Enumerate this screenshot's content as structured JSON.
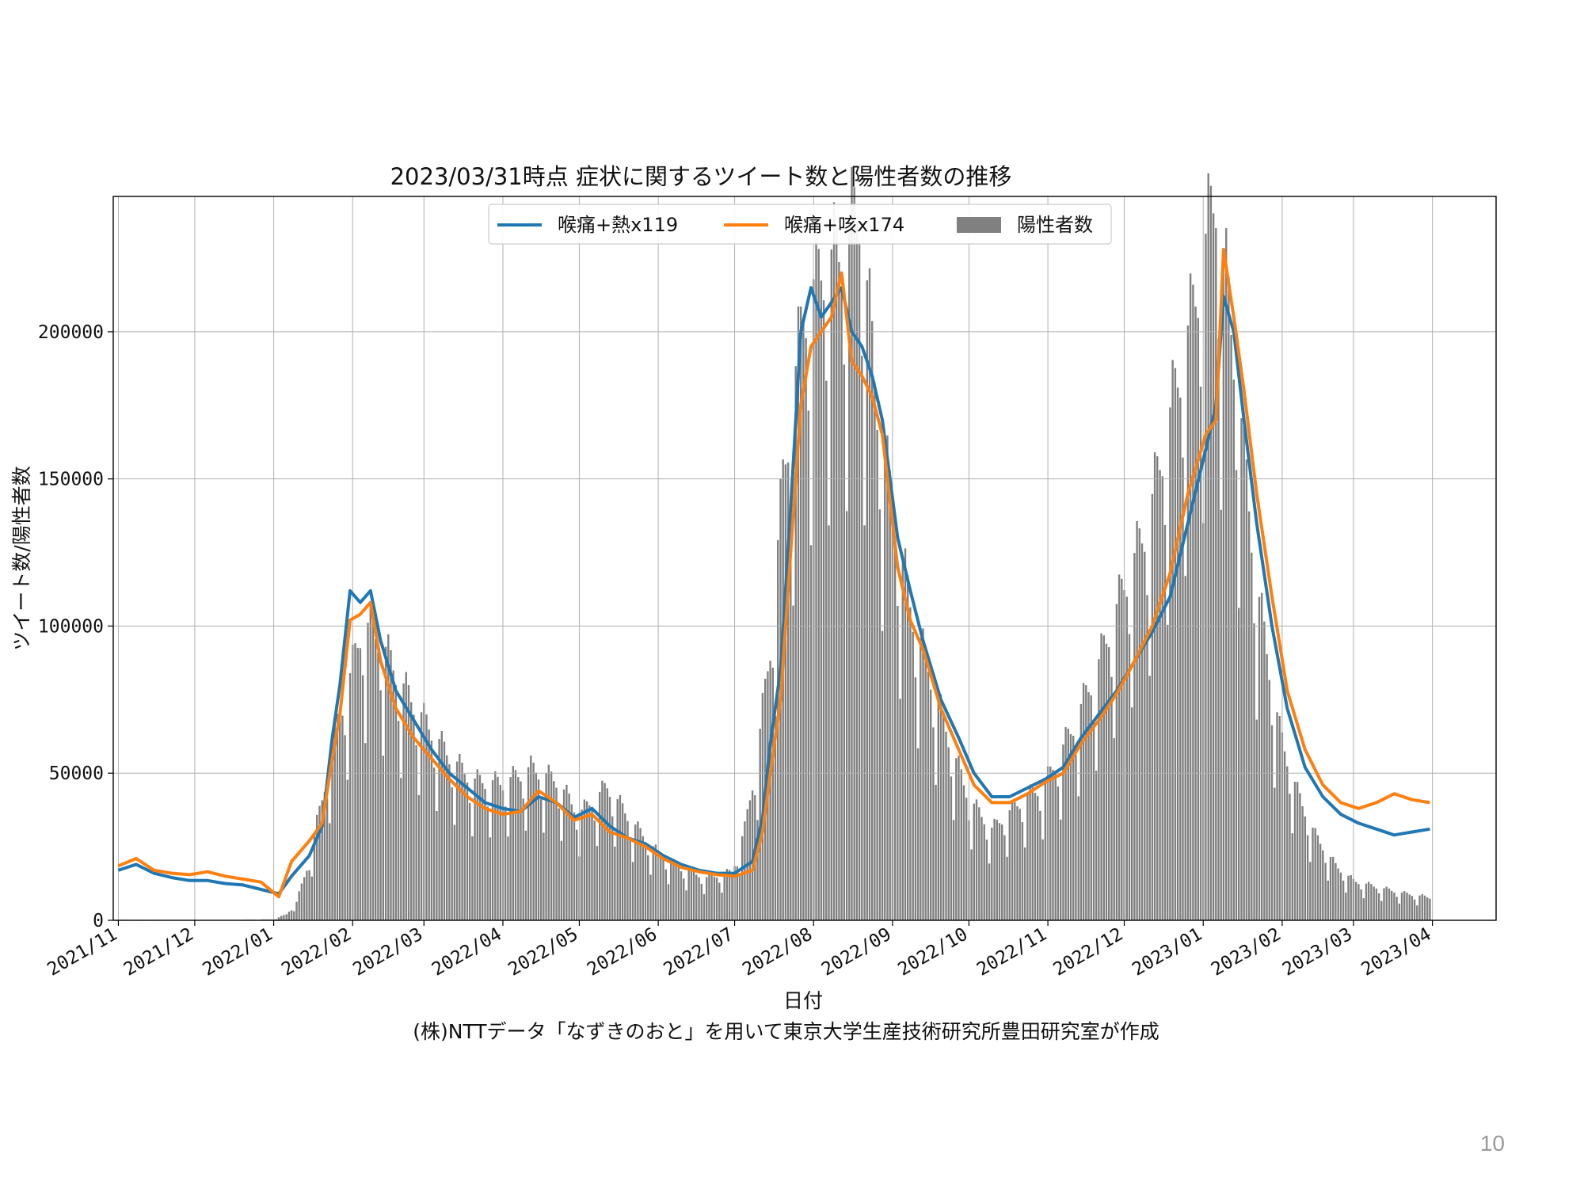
{
  "page_number": "10",
  "credit": "(株)NTTデータ「なずきのおと」を用いて東京大学生産技術研究所豊田研究室が作成",
  "chart_data": {
    "type": "line",
    "title": "2023/03/31時点 症状に関するツイート数と陽性者数の推移",
    "xlabel": "日付",
    "ylabel": "ツイート数/陽性者数",
    "x_ticks": [
      "2021/11",
      "2021/12",
      "2022/01",
      "2022/02",
      "2022/03",
      "2022/04",
      "2022/05",
      "2022/06",
      "2022/07",
      "2022/08",
      "2022/09",
      "2022/10",
      "2022/11",
      "2022/12",
      "2023/01",
      "2023/02",
      "2023/03",
      "2023/04"
    ],
    "x_range": [
      "2021-10-30",
      "2023-04-26"
    ],
    "y_ticks": [
      0,
      50000,
      100000,
      150000,
      200000
    ],
    "ylim": [
      0,
      246000
    ],
    "grid": true,
    "legend_position": "top-center",
    "colors": {
      "series1": "#1f77b4",
      "series2": "#ff7f0e",
      "bars": "#808080"
    },
    "series": [
      {
        "name": "喉痛+熱x119",
        "kind": "line",
        "points": [
          [
            "2021-11-01",
            17000
          ],
          [
            "2021-11-08",
            19000
          ],
          [
            "2021-11-15",
            16000
          ],
          [
            "2021-11-22",
            14500
          ],
          [
            "2021-11-29",
            13500
          ],
          [
            "2021-12-06",
            13500
          ],
          [
            "2021-12-13",
            12500
          ],
          [
            "2021-12-20",
            12000
          ],
          [
            "2021-12-27",
            10500
          ],
          [
            "2022-01-03",
            9000
          ],
          [
            "2022-01-08",
            15000
          ],
          [
            "2022-01-15",
            22000
          ],
          [
            "2022-01-20",
            32000
          ],
          [
            "2022-01-24",
            62000
          ],
          [
            "2022-01-27",
            80000
          ],
          [
            "2022-01-31",
            112000
          ],
          [
            "2022-02-04",
            108000
          ],
          [
            "2022-02-08",
            112000
          ],
          [
            "2022-02-12",
            95000
          ],
          [
            "2022-02-18",
            78000
          ],
          [
            "2022-02-25",
            68000
          ],
          [
            "2022-03-04",
            58000
          ],
          [
            "2022-03-11",
            50000
          ],
          [
            "2022-03-18",
            45000
          ],
          [
            "2022-03-25",
            40000
          ],
          [
            "2022-04-01",
            38000
          ],
          [
            "2022-04-08",
            37000
          ],
          [
            "2022-04-15",
            42000
          ],
          [
            "2022-04-22",
            40000
          ],
          [
            "2022-04-29",
            35000
          ],
          [
            "2022-05-06",
            38000
          ],
          [
            "2022-05-13",
            32000
          ],
          [
            "2022-05-20",
            28000
          ],
          [
            "2022-05-27",
            26000
          ],
          [
            "2022-06-03",
            22000
          ],
          [
            "2022-06-10",
            19000
          ],
          [
            "2022-06-17",
            17000
          ],
          [
            "2022-06-24",
            16000
          ],
          [
            "2022-07-01",
            16000
          ],
          [
            "2022-07-08",
            20000
          ],
          [
            "2022-07-12",
            35000
          ],
          [
            "2022-07-15",
            60000
          ],
          [
            "2022-07-19",
            85000
          ],
          [
            "2022-07-23",
            140000
          ],
          [
            "2022-07-27",
            200000
          ],
          [
            "2022-07-31",
            215000
          ],
          [
            "2022-08-04",
            205000
          ],
          [
            "2022-08-08",
            210000
          ],
          [
            "2022-08-12",
            215000
          ],
          [
            "2022-08-16",
            200000
          ],
          [
            "2022-08-20",
            195000
          ],
          [
            "2022-08-24",
            185000
          ],
          [
            "2022-08-28",
            170000
          ],
          [
            "2022-09-03",
            130000
          ],
          [
            "2022-09-08",
            112000
          ],
          [
            "2022-09-13",
            95000
          ],
          [
            "2022-09-20",
            75000
          ],
          [
            "2022-09-27",
            62000
          ],
          [
            "2022-10-03",
            50000
          ],
          [
            "2022-10-10",
            42000
          ],
          [
            "2022-10-17",
            42000
          ],
          [
            "2022-10-24",
            45000
          ],
          [
            "2022-10-31",
            48000
          ],
          [
            "2022-11-07",
            52000
          ],
          [
            "2022-11-14",
            62000
          ],
          [
            "2022-11-21",
            70000
          ],
          [
            "2022-11-28",
            78000
          ],
          [
            "2022-12-05",
            88000
          ],
          [
            "2022-12-12",
            98000
          ],
          [
            "2022-12-19",
            110000
          ],
          [
            "2022-12-26",
            135000
          ],
          [
            "2023-01-02",
            160000
          ],
          [
            "2023-01-06",
            175000
          ],
          [
            "2023-01-09",
            212000
          ],
          [
            "2023-01-13",
            200000
          ],
          [
            "2023-01-17",
            170000
          ],
          [
            "2023-01-22",
            135000
          ],
          [
            "2023-01-28",
            100000
          ],
          [
            "2023-02-03",
            72000
          ],
          [
            "2023-02-10",
            52000
          ],
          [
            "2023-02-17",
            42000
          ],
          [
            "2023-02-24",
            36000
          ],
          [
            "2023-03-03",
            33000
          ],
          [
            "2023-03-10",
            31000
          ],
          [
            "2023-03-17",
            29000
          ],
          [
            "2023-03-24",
            30000
          ],
          [
            "2023-03-31",
            31000
          ]
        ]
      },
      {
        "name": "喉痛+咳x174",
        "kind": "line",
        "points": [
          [
            "2021-11-01",
            18500
          ],
          [
            "2021-11-08",
            21000
          ],
          [
            "2021-11-15",
            17000
          ],
          [
            "2021-11-22",
            16000
          ],
          [
            "2021-11-29",
            15500
          ],
          [
            "2021-12-06",
            16500
          ],
          [
            "2021-12-13",
            15000
          ],
          [
            "2021-12-20",
            14000
          ],
          [
            "2021-12-27",
            13000
          ],
          [
            "2022-01-03",
            8000
          ],
          [
            "2022-01-08",
            20000
          ],
          [
            "2022-01-15",
            27000
          ],
          [
            "2022-01-20",
            33000
          ],
          [
            "2022-01-24",
            55000
          ],
          [
            "2022-01-27",
            70000
          ],
          [
            "2022-01-31",
            102000
          ],
          [
            "2022-02-04",
            104000
          ],
          [
            "2022-02-08",
            108000
          ],
          [
            "2022-02-12",
            88000
          ],
          [
            "2022-02-18",
            72000
          ],
          [
            "2022-02-25",
            62000
          ],
          [
            "2022-03-04",
            55000
          ],
          [
            "2022-03-11",
            48000
          ],
          [
            "2022-03-18",
            42000
          ],
          [
            "2022-03-25",
            38000
          ],
          [
            "2022-04-01",
            36000
          ],
          [
            "2022-04-08",
            37000
          ],
          [
            "2022-04-15",
            44000
          ],
          [
            "2022-04-22",
            40000
          ],
          [
            "2022-04-29",
            34000
          ],
          [
            "2022-05-06",
            36000
          ],
          [
            "2022-05-13",
            30000
          ],
          [
            "2022-05-20",
            28000
          ],
          [
            "2022-05-27",
            25000
          ],
          [
            "2022-06-03",
            21000
          ],
          [
            "2022-06-10",
            18000
          ],
          [
            "2022-06-17",
            16500
          ],
          [
            "2022-06-24",
            15500
          ],
          [
            "2022-07-01",
            15000
          ],
          [
            "2022-07-08",
            17000
          ],
          [
            "2022-07-12",
            30000
          ],
          [
            "2022-07-15",
            50000
          ],
          [
            "2022-07-19",
            75000
          ],
          [
            "2022-07-23",
            125000
          ],
          [
            "2022-07-27",
            175000
          ],
          [
            "2022-07-31",
            195000
          ],
          [
            "2022-08-04",
            200000
          ],
          [
            "2022-08-08",
            205000
          ],
          [
            "2022-08-12",
            220000
          ],
          [
            "2022-08-16",
            190000
          ],
          [
            "2022-08-20",
            185000
          ],
          [
            "2022-08-24",
            178000
          ],
          [
            "2022-08-28",
            165000
          ],
          [
            "2022-09-03",
            120000
          ],
          [
            "2022-09-08",
            102000
          ],
          [
            "2022-09-13",
            92000
          ],
          [
            "2022-09-20",
            72000
          ],
          [
            "2022-09-27",
            58000
          ],
          [
            "2022-10-03",
            46000
          ],
          [
            "2022-10-10",
            40000
          ],
          [
            "2022-10-17",
            40000
          ],
          [
            "2022-10-24",
            43000
          ],
          [
            "2022-10-31",
            47000
          ],
          [
            "2022-11-07",
            50000
          ],
          [
            "2022-11-14",
            60000
          ],
          [
            "2022-11-21",
            68000
          ],
          [
            "2022-11-28",
            77000
          ],
          [
            "2022-12-05",
            88000
          ],
          [
            "2022-12-12",
            100000
          ],
          [
            "2022-12-19",
            118000
          ],
          [
            "2022-12-26",
            145000
          ],
          [
            "2023-01-02",
            165000
          ],
          [
            "2023-01-06",
            170000
          ],
          [
            "2023-01-09",
            228000
          ],
          [
            "2023-01-13",
            205000
          ],
          [
            "2023-01-17",
            180000
          ],
          [
            "2023-01-22",
            145000
          ],
          [
            "2023-01-28",
            110000
          ],
          [
            "2023-02-03",
            78000
          ],
          [
            "2023-02-10",
            58000
          ],
          [
            "2023-02-17",
            46000
          ],
          [
            "2023-02-24",
            40000
          ],
          [
            "2023-03-03",
            38000
          ],
          [
            "2023-03-10",
            40000
          ],
          [
            "2023-03-17",
            43000
          ],
          [
            "2023-03-24",
            41000
          ],
          [
            "2023-03-31",
            40000
          ]
        ]
      },
      {
        "name": "陽性者数",
        "kind": "bar",
        "points": [
          [
            "2021-11-01",
            200
          ],
          [
            "2021-11-15",
            150
          ],
          [
            "2021-12-01",
            100
          ],
          [
            "2021-12-15",
            120
          ],
          [
            "2022-01-01",
            300
          ],
          [
            "2022-01-06",
            2000
          ],
          [
            "2022-01-10",
            6000
          ],
          [
            "2022-01-15",
            20000
          ],
          [
            "2022-01-20",
            40000
          ],
          [
            "2022-01-25",
            62000
          ],
          [
            "2022-01-31",
            80000
          ],
          [
            "2022-02-05",
            98000
          ],
          [
            "2022-02-12",
            92000
          ],
          [
            "2022-02-20",
            78000
          ],
          [
            "2022-03-01",
            66000
          ],
          [
            "2022-03-10",
            55000
          ],
          [
            "2022-03-20",
            46000
          ],
          [
            "2022-04-01",
            45000
          ],
          [
            "2022-04-12",
            50000
          ],
          [
            "2022-04-22",
            46000
          ],
          [
            "2022-05-01",
            35000
          ],
          [
            "2022-05-12",
            44000
          ],
          [
            "2022-05-22",
            32000
          ],
          [
            "2022-06-01",
            22000
          ],
          [
            "2022-06-10",
            17000
          ],
          [
            "2022-06-20",
            14000
          ],
          [
            "2022-06-30",
            16000
          ],
          [
            "2022-07-05",
            30000
          ],
          [
            "2022-07-10",
            55000
          ],
          [
            "2022-07-15",
            90000
          ],
          [
            "2022-07-20",
            145000
          ],
          [
            "2022-07-28",
            200000
          ],
          [
            "2022-08-05",
            215000
          ],
          [
            "2022-08-12",
            220000
          ],
          [
            "2022-08-19",
            235000
          ],
          [
            "2022-08-26",
            170000
          ],
          [
            "2022-09-02",
            130000
          ],
          [
            "2022-09-09",
            100000
          ],
          [
            "2022-09-16",
            80000
          ],
          [
            "2022-09-23",
            60000
          ],
          [
            "2022-10-01",
            40000
          ],
          [
            "2022-10-10",
            30000
          ],
          [
            "2022-10-20",
            38000
          ],
          [
            "2022-10-31",
            45000
          ],
          [
            "2022-11-10",
            62000
          ],
          [
            "2022-11-20",
            82000
          ],
          [
            "2022-12-01",
            110000
          ],
          [
            "2022-12-10",
            130000
          ],
          [
            "2022-12-20",
            170000
          ],
          [
            "2022-12-28",
            200000
          ],
          [
            "2023-01-06",
            240000
          ],
          [
            "2023-01-14",
            180000
          ],
          [
            "2023-01-22",
            110000
          ],
          [
            "2023-01-31",
            62000
          ],
          [
            "2023-02-07",
            42000
          ],
          [
            "2023-02-14",
            28000
          ],
          [
            "2023-02-22",
            18000
          ],
          [
            "2023-03-01",
            13000
          ],
          [
            "2023-03-10",
            11000
          ],
          [
            "2023-03-20",
            9000
          ],
          [
            "2023-03-31",
            7500
          ]
        ]
      }
    ]
  }
}
